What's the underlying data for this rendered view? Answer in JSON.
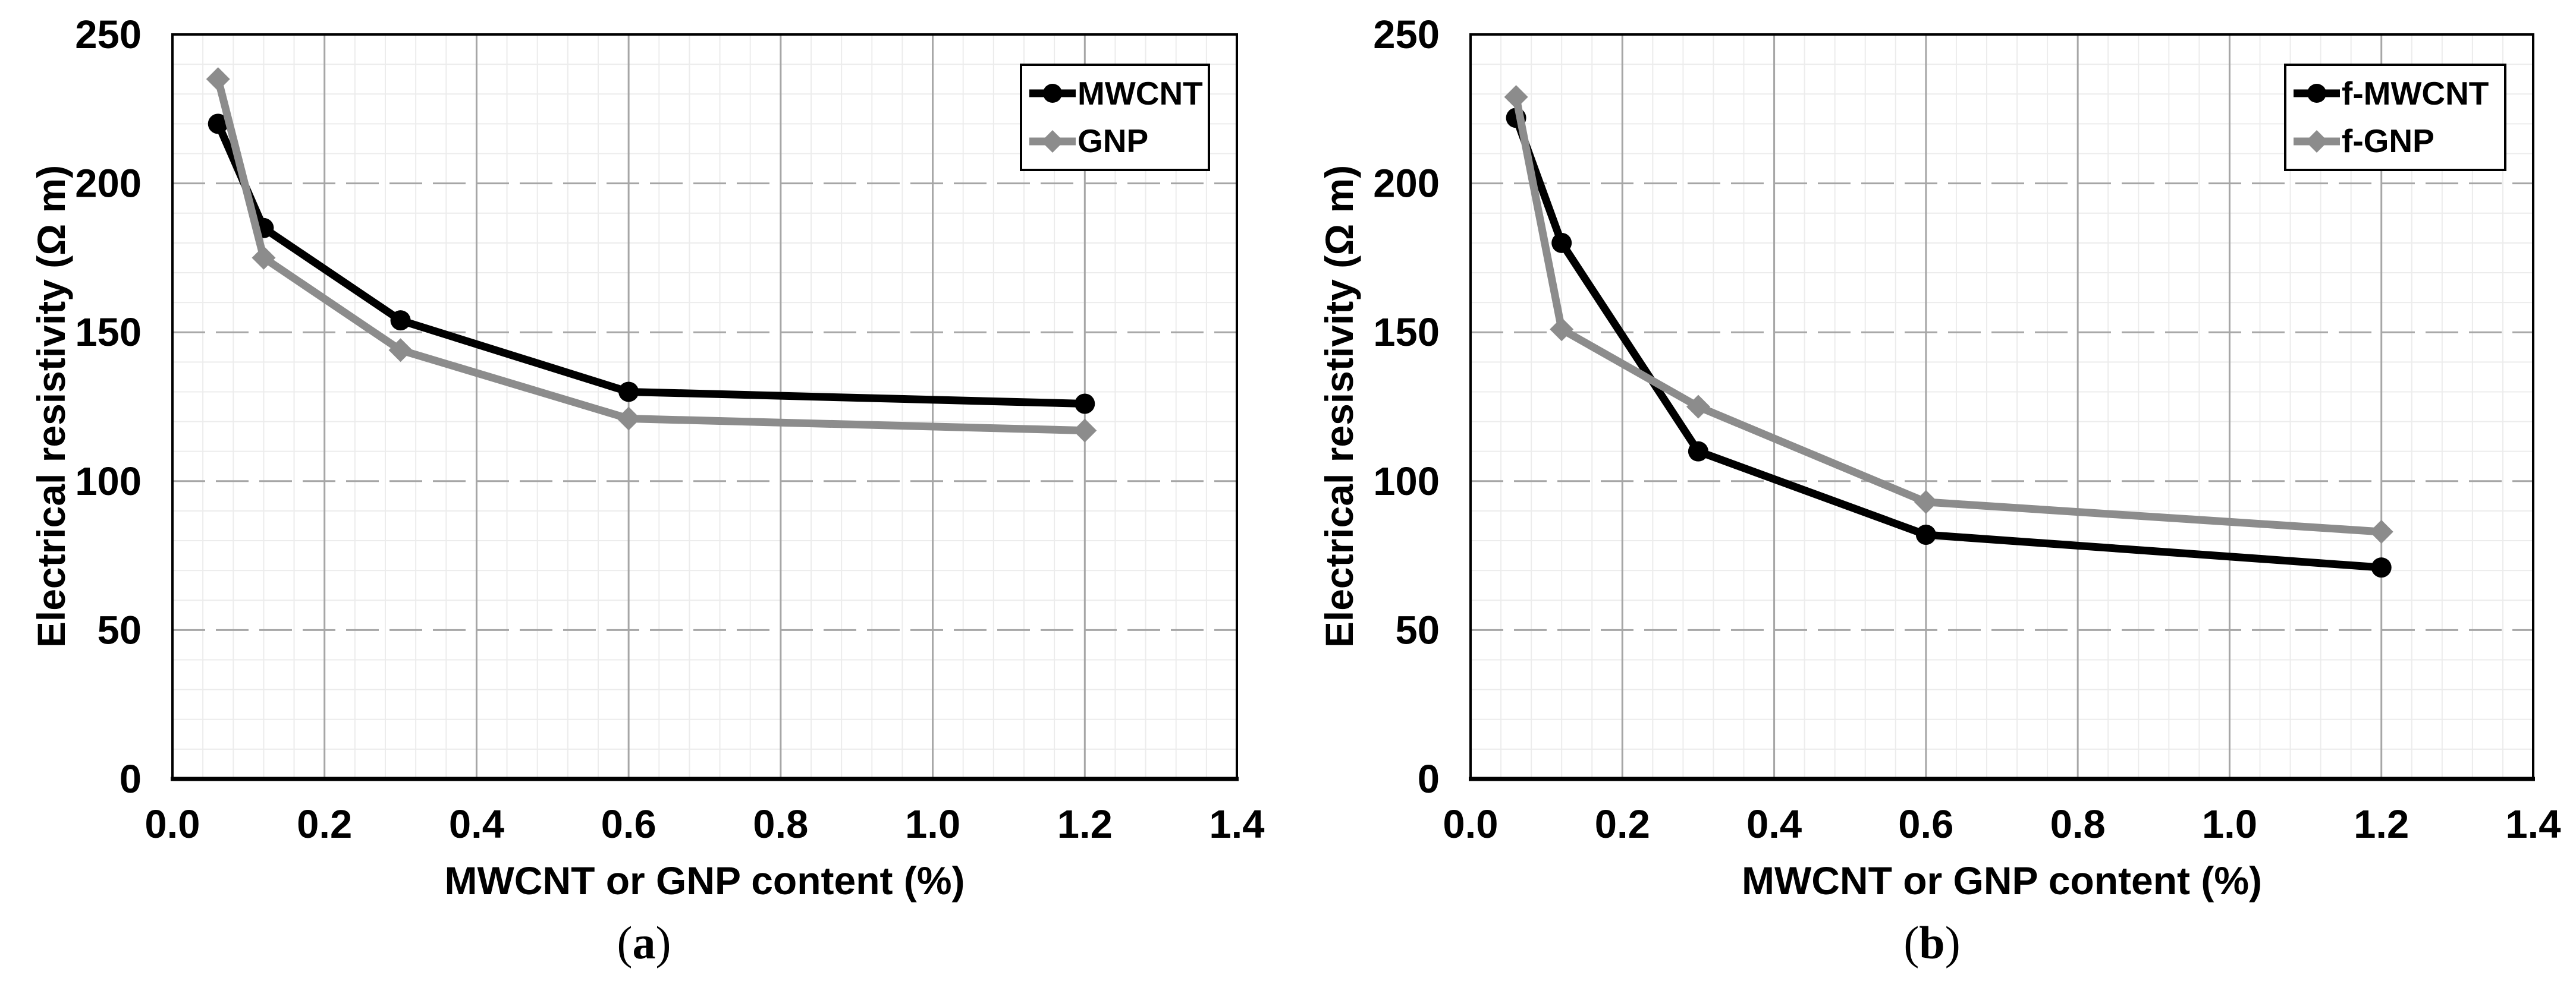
{
  "ui": {
    "paren_open": "(",
    "paren_close": ")"
  },
  "style": {
    "series_black": "#000000",
    "series_gray": "#8c8c8c",
    "major_grid_color": "#a6a6a6",
    "minor_grid_color": "#ececec",
    "axis_color": "#000000",
    "background": "#ffffff"
  },
  "chart_data": [
    {
      "type": "line",
      "caption_letter": "a",
      "xlabel": "MWCNT or GNP content (%)",
      "ylabel": "Electrical resistivity (Ω m)",
      "x_axis": {
        "min": 0,
        "max": 1.4,
        "major_step": 0.2,
        "minor_step": 0.04,
        "ticks": [
          "0.0",
          "0.2",
          "0.4",
          "0.6",
          "0.8",
          "1.0",
          "1.2",
          "1.4"
        ]
      },
      "y_axis": {
        "min": 0,
        "max": 250,
        "major_step": 50,
        "minor_step": 10,
        "ticks": [
          "0",
          "50",
          "100",
          "150",
          "200",
          "250"
        ]
      },
      "grid": {
        "major": true,
        "minor": true,
        "horizontal_major_dashed": true
      },
      "legend_position": "top-right",
      "series": [
        {
          "name": "MWCNT",
          "color": "#000000",
          "marker": "circle",
          "x": [
            0.06,
            0.12,
            0.3,
            0.6,
            1.2
          ],
          "y": [
            220,
            185,
            154,
            130,
            126
          ]
        },
        {
          "name": "GNP",
          "color": "#8c8c8c",
          "marker": "diamond",
          "x": [
            0.06,
            0.12,
            0.3,
            0.6,
            1.2
          ],
          "y": [
            235,
            175,
            144,
            121,
            117
          ]
        }
      ]
    },
    {
      "type": "line",
      "caption_letter": "b",
      "xlabel": "MWCNT or GNP content (%)",
      "ylabel": "Electrical resistivity (Ω m)",
      "x_axis": {
        "min": 0,
        "max": 1.4,
        "major_step": 0.2,
        "minor_step": 0.04,
        "ticks": [
          "0.0",
          "0.2",
          "0.4",
          "0.6",
          "0.8",
          "1.0",
          "1.2",
          "1.4"
        ]
      },
      "y_axis": {
        "min": 0,
        "max": 250,
        "major_step": 50,
        "minor_step": 10,
        "ticks": [
          "0",
          "50",
          "100",
          "150",
          "200",
          "250"
        ]
      },
      "grid": {
        "major": true,
        "minor": true,
        "horizontal_major_dashed": true
      },
      "legend_position": "top-right",
      "series": [
        {
          "name": "f-MWCNT",
          "color": "#000000",
          "marker": "circle",
          "x": [
            0.06,
            0.12,
            0.3,
            0.6,
            1.2
          ],
          "y": [
            222,
            180,
            110,
            82,
            71
          ]
        },
        {
          "name": "f-GNP",
          "color": "#8c8c8c",
          "marker": "diamond",
          "x": [
            0.06,
            0.12,
            0.3,
            0.6,
            1.2
          ],
          "y": [
            229,
            151,
            125,
            93,
            83
          ]
        }
      ]
    }
  ]
}
